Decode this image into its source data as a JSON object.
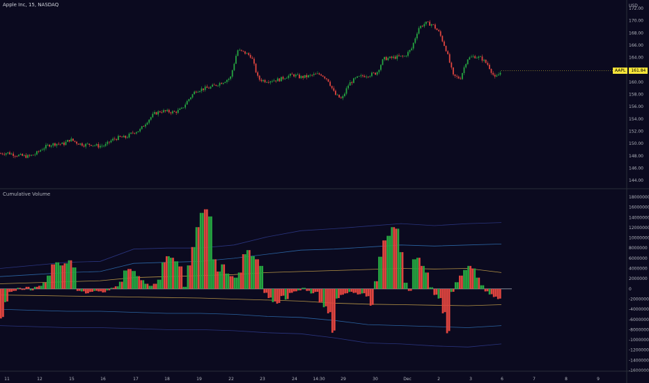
{
  "header": {
    "title": "Apple Inc, 15, NASDAQ",
    "currency": "USD",
    "indicator_title": "Cumulative Volume"
  },
  "price_tag": {
    "symbol": "AAPL",
    "value": "161.84"
  },
  "colors": {
    "background": "#0b0a1f",
    "up": "#26a641",
    "down": "#e0453f",
    "band_outer": "#2e3a8a",
    "band_mid": "#2f6fb3",
    "band_inner": "#c9a34a"
  },
  "chart_data": [
    {
      "type": "line",
      "ylim": [
        143,
        172
      ],
      "yticks": [
        "144.00",
        "146.00",
        "148.00",
        "150.00",
        "152.00",
        "154.00",
        "156.00",
        "158.00",
        "160.00",
        "162.00",
        "164.00",
        "166.00",
        "168.00",
        "170.00",
        "172.00"
      ],
      "x": [
        0,
        10,
        20,
        30,
        40,
        50,
        60,
        70,
        80,
        90,
        100,
        110,
        120,
        130,
        140,
        150,
        160,
        170,
        180,
        190,
        200,
        210,
        220,
        230,
        240,
        250,
        260,
        270,
        280,
        290,
        300,
        310,
        320,
        330,
        340,
        350,
        360,
        370,
        380,
        390,
        400,
        410,
        420,
        430,
        440,
        450,
        460,
        470,
        480,
        490,
        500,
        510,
        520,
        530,
        540,
        550,
        560,
        570,
        580,
        590,
        600,
        610,
        620,
        630,
        640,
        650,
        660,
        670,
        680,
        690,
        700,
        710,
        720
      ],
      "close": [
        148.4,
        148.5,
        148.2,
        148.0,
        147.9,
        148.3,
        149.2,
        149.8,
        150.0,
        149.9,
        150.7,
        150.1,
        149.8,
        149.9,
        149.6,
        149.7,
        150.6,
        151.0,
        151.0,
        151.8,
        152.2,
        153.6,
        154.8,
        155.3,
        155.2,
        155.1,
        155.6,
        157.2,
        158.6,
        158.9,
        159.1,
        159.6,
        160.1,
        160.7,
        165.2,
        164.8,
        164.2,
        160.5,
        160.2,
        160.3,
        160.4,
        160.9,
        161.2,
        160.8,
        160.9,
        161.2,
        161.3,
        160.4,
        158.0,
        157.2,
        159.7,
        160.6,
        161.0,
        161.2,
        161.5,
        163.8,
        163.9,
        164.1,
        164.2,
        165.4,
        168.8,
        169.6,
        169.4,
        168.0,
        165.2,
        161.0,
        160.6,
        163.8,
        164.2,
        163.9,
        162.8,
        160.6,
        161.84
      ]
    },
    {
      "type": "bar",
      "ylim": [
        -16000000,
        18000000
      ],
      "yticks": [
        "18000000",
        "16000000",
        "14000000",
        "12000000",
        "10000000",
        "8000000",
        "6000000",
        "4000000",
        "2000000",
        "0",
        "-2000000",
        "-4000000",
        "-6000000",
        "-8000000",
        "-10000000",
        "-12000000",
        "-14000000",
        "-16000000"
      ],
      "xlabels": [
        "11",
        "12",
        "15",
        "16",
        "17",
        "18",
        "19",
        "22",
        "23",
        "24",
        "14:30",
        "29",
        "30",
        "Dec",
        "2",
        "3",
        "6",
        "7",
        "8",
        "9"
      ],
      "bars": [
        -5.8,
        -2.6,
        -0.6,
        -0.4,
        0.2,
        -0.2,
        0.4,
        -0.3,
        0.4,
        0.6,
        1.2,
        2.6,
        4.8,
        5.2,
        4.6,
        5.0,
        5.6,
        4.2,
        -0.4,
        -0.5,
        -0.9,
        -0.6,
        -0.4,
        -0.5,
        -0.7,
        -0.3,
        0.2,
        0.5,
        1.4,
        3.6,
        3.9,
        3.5,
        2.5,
        1.7,
        1.0,
        0.6,
        1.0,
        1.8,
        5.2,
        6.4,
        6.1,
        5.4,
        4.4,
        0.4,
        4.6,
        8.2,
        12.1,
        14.9,
        15.6,
        14.2,
        5.8,
        3.4,
        4.8,
        3.0,
        2.5,
        2.2,
        3.2,
        6.8,
        7.6,
        6.4,
        5.8,
        4.5,
        -0.8,
        -1.8,
        -2.6,
        -2.9,
        -1.4,
        -2.1,
        -0.8,
        -0.5,
        -0.3,
        0.2,
        -0.4,
        -0.9,
        -0.6,
        -2.7,
        -3.6,
        -4.8,
        -8.6,
        -1.9,
        -1.2,
        -0.9,
        -0.6,
        -0.8,
        -1.1,
        -0.9,
        -1.5,
        -3.3,
        1.5,
        6.3,
        9.5,
        10.4,
        12.1,
        11.8,
        7.2,
        1.2,
        -0.4,
        5.8,
        6.1,
        4.5,
        3.2,
        0.3,
        -1.2,
        -1.9,
        -4.8,
        -8.7,
        -0.6,
        1.3,
        2.6,
        3.7,
        4.5,
        4.0,
        2.2,
        0.7,
        -0.5,
        -1.1,
        -1.6,
        -2.0
      ],
      "band_levels_millions": [
        {
          "name": "outer",
          "upper": [
            4.0,
            4.6,
            5.2,
            5.4,
            7.8,
            8.0,
            8.0,
            8.6,
            10.2,
            11.4,
            11.8,
            12.3,
            12.8,
            12.4,
            12.8,
            13.0
          ],
          "lower": [
            -7.2,
            -7.4,
            -7.6,
            -7.6,
            -7.8,
            -8.0,
            -8.0,
            -8.2,
            -8.6,
            -8.8,
            -9.6,
            -10.6,
            -10.8,
            -11.2,
            -11.4,
            -10.8
          ]
        },
        {
          "name": "mid",
          "upper": [
            2.4,
            2.8,
            3.2,
            3.4,
            5.0,
            5.2,
            5.4,
            6.0,
            6.8,
            7.6,
            7.8,
            8.2,
            8.6,
            8.4,
            8.6,
            8.8
          ],
          "lower": [
            -4.0,
            -4.2,
            -4.4,
            -4.4,
            -4.6,
            -4.8,
            -4.8,
            -5.0,
            -5.4,
            -5.6,
            -6.2,
            -7.0,
            -7.2,
            -7.4,
            -7.6,
            -7.2
          ]
        },
        {
          "name": "inner",
          "upper": [
            1.0,
            1.2,
            1.4,
            1.6,
            2.2,
            2.4,
            2.6,
            2.8,
            3.2,
            3.4,
            3.6,
            3.8,
            4.0,
            3.9,
            4.0,
            3.2
          ],
          "lower": [
            -1.2,
            -1.3,
            -1.4,
            -1.5,
            -1.6,
            -1.7,
            -1.8,
            -2.0,
            -2.2,
            -2.4,
            -2.8,
            -3.0,
            -3.1,
            -3.2,
            -3.3,
            -3.1
          ]
        }
      ]
    }
  ]
}
